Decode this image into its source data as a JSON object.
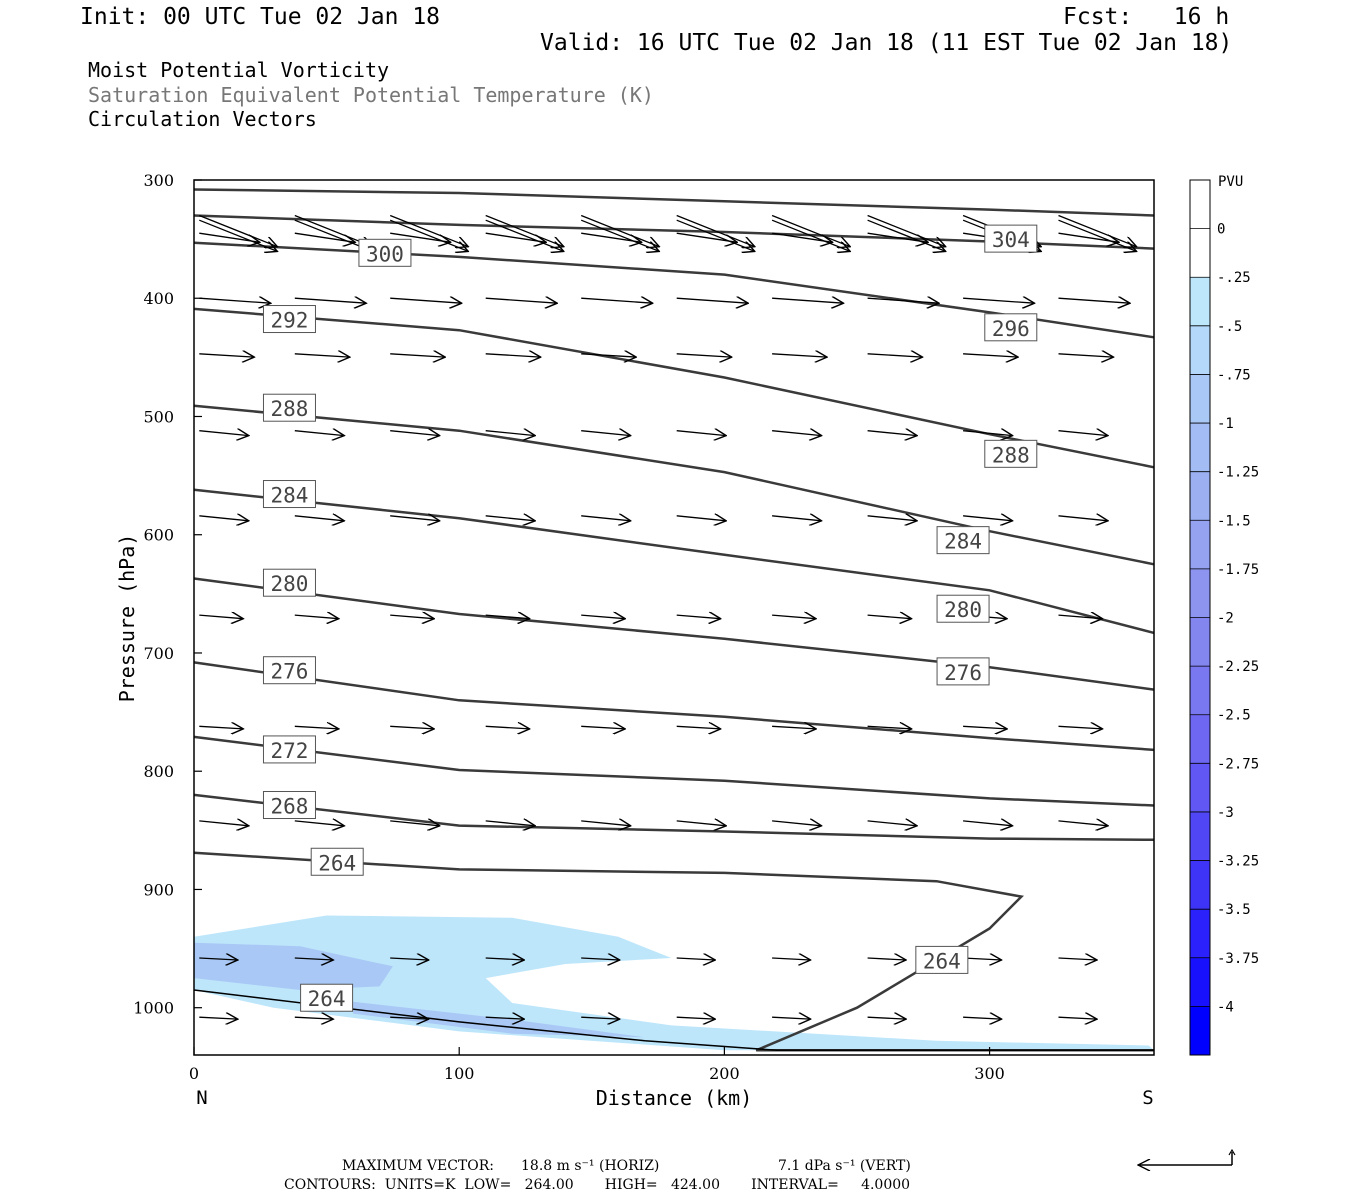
{
  "header": {
    "init": "Init: 00 UTC Tue 02 Jan 18",
    "fcst": "Fcst:   16 h",
    "valid": "Valid: 16 UTC Tue 02 Jan 18 (11 EST Tue 02 Jan 18)",
    "line1": "Moist Potential Vorticity",
    "line2": "Saturation Equivalent Potential Temperature (K)",
    "line3": "Circulation Vectors"
  },
  "footer": {
    "max_vector_label": "MAXIMUM VECTOR:",
    "horiz": "18.8 m s⁻¹ (HORIZ)",
    "vert": "7.1 dPa s⁻¹ (VERT)",
    "contours": "CONTOURS:  UNITS=K  LOW=   264.00       HIGH=   424.00       INTERVAL=     4.0000"
  },
  "colors": {
    "contour": "#3a3a3a",
    "pv_light": "#bde6fb",
    "pv_mid": "#a9c8f5",
    "pv_dark": "#9fb0ee"
  },
  "chart_data": {
    "type": "cross-section",
    "xlabel": "Distance (km)",
    "ylabel": "Pressure (hPa)",
    "x_ticks": [
      0,
      100,
      200,
      300
    ],
    "y_ticks": [
      300,
      400,
      500,
      600,
      700,
      800,
      900,
      1000
    ],
    "xlim": [
      0,
      362
    ],
    "ylim": [
      300,
      1040
    ],
    "y_scale": "linear-inverted",
    "end_labels": {
      "left": "N",
      "right": "S"
    },
    "colorbar": {
      "title": "PVU",
      "labels": [
        "0",
        "-.25",
        "-.5",
        "-.75",
        "-1",
        "-1.25",
        "-1.5",
        "-1.75",
        "-2",
        "-2.25",
        "-2.5",
        "-2.75",
        "-3",
        "-3.25",
        "-3.5",
        "-3.75",
        "-4"
      ],
      "colors": [
        "#ffffff",
        "#ffffff",
        "#bde6fb",
        "#b4d8f9",
        "#a9c8f5",
        "#a3bcf3",
        "#9cb0f1",
        "#95a2ef",
        "#8c94ef",
        "#8486f0",
        "#7a78f1",
        "#6e67f2",
        "#6057f4",
        "#5046f6",
        "#3e34f8",
        "#2b22fb",
        "#1711fd",
        "#0000ff"
      ]
    },
    "contours": [
      {
        "value": 304,
        "points": [
          [
            0,
            308
          ],
          [
            100,
            311
          ],
          [
            200,
            318
          ],
          [
            300,
            325
          ],
          [
            362,
            330
          ]
        ],
        "labels": [
          [
            308,
            350
          ]
        ]
      },
      {
        "value": 300,
        "points": [
          [
            0,
            330
          ],
          [
            100,
            338
          ],
          [
            200,
            344
          ],
          [
            300,
            352
          ],
          [
            362,
            358
          ]
        ],
        "labels": [
          [
            72,
            362
          ]
        ]
      },
      {
        "value": 296,
        "points": [
          [
            0,
            353
          ],
          [
            100,
            365
          ],
          [
            200,
            380
          ],
          [
            300,
            412
          ],
          [
            362,
            433
          ]
        ],
        "labels": [
          [
            308,
            425
          ]
        ]
      },
      {
        "value": 292,
        "points": [
          [
            0,
            409
          ],
          [
            100,
            427
          ],
          [
            200,
            467
          ],
          [
            300,
            515
          ],
          [
            362,
            543
          ]
        ],
        "labels": [
          [
            36,
            418
          ]
        ]
      },
      {
        "value": 288,
        "points": [
          [
            0,
            491
          ],
          [
            100,
            512
          ],
          [
            200,
            547
          ],
          [
            300,
            597
          ],
          [
            362,
            625
          ]
        ],
        "labels": [
          [
            36,
            493
          ],
          [
            308,
            532
          ]
        ]
      },
      {
        "value": 284,
        "points": [
          [
            0,
            562
          ],
          [
            100,
            586
          ],
          [
            200,
            617
          ],
          [
            300,
            647
          ],
          [
            362,
            683
          ]
        ],
        "labels": [
          [
            36,
            566
          ],
          [
            290,
            605
          ]
        ]
      },
      {
        "value": 280,
        "points": [
          [
            0,
            637
          ],
          [
            100,
            667
          ],
          [
            200,
            688
          ],
          [
            300,
            712
          ],
          [
            362,
            731
          ]
        ],
        "labels": [
          [
            36,
            641
          ],
          [
            290,
            663
          ]
        ]
      },
      {
        "value": 276,
        "points": [
          [
            0,
            708
          ],
          [
            100,
            740
          ],
          [
            200,
            754
          ],
          [
            300,
            772
          ],
          [
            362,
            782
          ]
        ],
        "labels": [
          [
            36,
            715
          ],
          [
            290,
            716
          ]
        ]
      },
      {
        "value": 272,
        "points": [
          [
            0,
            771
          ],
          [
            100,
            799
          ],
          [
            200,
            808
          ],
          [
            300,
            823
          ],
          [
            362,
            829
          ]
        ],
        "labels": [
          [
            36,
            782
          ]
        ]
      },
      {
        "value": 268,
        "points": [
          [
            0,
            820
          ],
          [
            100,
            846
          ],
          [
            200,
            851
          ],
          [
            300,
            857
          ],
          [
            362,
            858
          ]
        ],
        "labels": [
          [
            36,
            829
          ]
        ]
      },
      {
        "value": 264,
        "points": [
          [
            0,
            869
          ],
          [
            100,
            883
          ],
          [
            200,
            886
          ],
          [
            280,
            893
          ],
          [
            312,
            906
          ],
          [
            300,
            933
          ],
          [
            250,
            1000
          ],
          [
            212,
            1036
          ],
          [
            240,
            1036
          ],
          [
            362,
            1036
          ]
        ],
        "labels": [
          [
            54,
            877
          ],
          [
            282,
            960
          ],
          [
            50,
            992
          ]
        ]
      }
    ],
    "pv_shading": [
      {
        "value": -0.25,
        "points": [
          [
            0,
            940
          ],
          [
            50,
            922
          ],
          [
            120,
            924
          ],
          [
            160,
            940
          ],
          [
            180,
            958
          ],
          [
            140,
            963
          ],
          [
            110,
            975
          ],
          [
            120,
            996
          ],
          [
            180,
            1015
          ],
          [
            280,
            1028
          ],
          [
            360,
            1032
          ],
          [
            362,
            1036
          ],
          [
            200,
            1036
          ],
          [
            100,
            1020
          ],
          [
            30,
            1000
          ],
          [
            0,
            985
          ]
        ]
      },
      {
        "value": -1,
        "points": [
          [
            0,
            945
          ],
          [
            40,
            948
          ],
          [
            75,
            965
          ],
          [
            70,
            982
          ],
          [
            40,
            985
          ],
          [
            0,
            975
          ]
        ]
      },
      {
        "value": -1,
        "points": [
          [
            60,
            995
          ],
          [
            120,
            1010
          ],
          [
            170,
            1025
          ],
          [
            120,
            1022
          ],
          [
            60,
            1005
          ]
        ]
      }
    ],
    "vectors": {
      "rows": [
        [
          330,
          14.2,
          -0.4
        ],
        [
          334,
          14.2,
          -0.4
        ],
        [
          345,
          11,
          -0.15
        ],
        [
          400,
          13,
          -0.07
        ],
        [
          447,
          10,
          -0.06
        ],
        [
          512,
          9,
          -0.1
        ],
        [
          584,
          9,
          -0.1
        ],
        [
          668,
          8,
          -0.08
        ],
        [
          762,
          8,
          -0.06
        ],
        [
          842,
          9,
          -0.1
        ],
        [
          958,
          7,
          -0.05
        ],
        [
          1008,
          7,
          -0.05
        ]
      ],
      "x_positions": [
        0,
        36,
        72,
        108,
        144,
        180,
        216,
        252,
        288,
        324
      ],
      "reference_arrow": "left"
    },
    "terrain": {
      "points": [
        [
          0,
          985
        ],
        [
          100,
          1012
        ],
        [
          170,
          1028
        ],
        [
          220,
          1036
        ],
        [
          362,
          1036
        ]
      ]
    },
    "fill_color_hint": "#bde6fb"
  }
}
